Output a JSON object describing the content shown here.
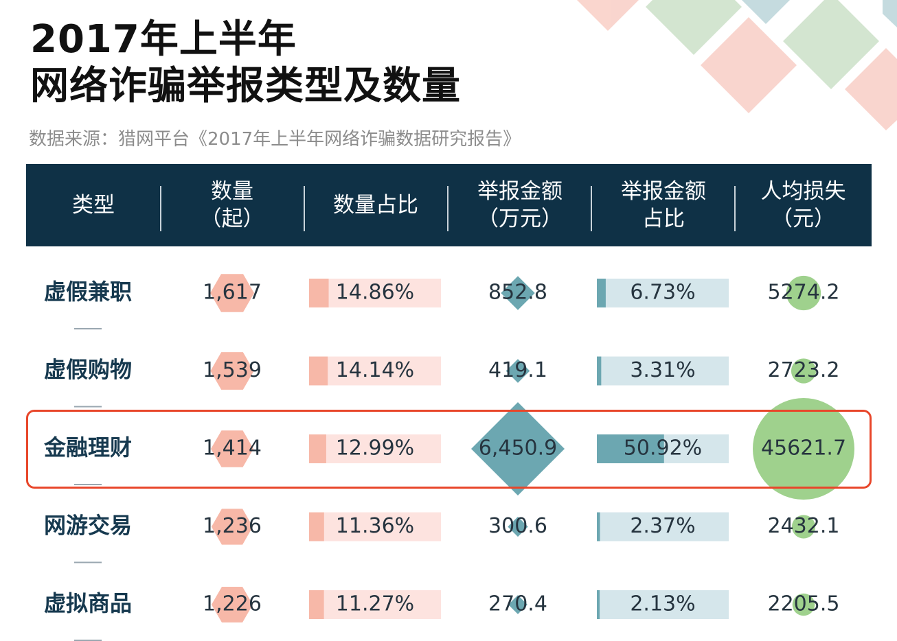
{
  "title_line1": "2017年上半年",
  "title_line2": "网络诈骗举报类型及数量",
  "source": "数据来源：猎网平台《2017年上半年网络诈骗数据研究报告》",
  "headers": [
    {
      "line1": "类型",
      "line2": ""
    },
    {
      "line1": "数量",
      "line2": "（起）"
    },
    {
      "line1": "数量占比",
      "line2": ""
    },
    {
      "line1": "举报金额",
      "line2": "（万元）"
    },
    {
      "line1": "举报金额",
      "line2": "占比"
    },
    {
      "line1": "人均损失",
      "line2": "（元）"
    }
  ],
  "colors": {
    "header_bg": "#0f3146",
    "count_marker": "#f7b8a8",
    "pct_bar_bg": "#fde3df",
    "pct_bar_fill": "#f7b8a8",
    "amount_marker": "#6ca7b1",
    "amount_bar_bg": "#d5e6eb",
    "amount_bar_fill": "#6ca7b1",
    "loss_marker": "#9fd18d",
    "highlight": "#e8462a"
  },
  "chart_data": {
    "type": "table",
    "columns": [
      "类型",
      "数量（起）",
      "数量占比",
      "举报金额（万元）",
      "举报金额占比",
      "人均损失（元）"
    ],
    "highlighted_row": "金融理财",
    "rows": [
      {
        "type": "虚假兼职",
        "count": 1617,
        "count_label": "1,617",
        "count_pct": 14.86,
        "count_pct_label": "14.86%",
        "amount": 852.8,
        "amount_label": "852.8",
        "amount_pct": 6.73,
        "amount_pct_label": "6.73%",
        "loss": 5274.2,
        "loss_label": "5274.2"
      },
      {
        "type": "虚假购物",
        "count": 1539,
        "count_label": "1,539",
        "count_pct": 14.14,
        "count_pct_label": "14.14%",
        "amount": 419.1,
        "amount_label": "419.1",
        "amount_pct": 3.31,
        "amount_pct_label": "3.31%",
        "loss": 2723.2,
        "loss_label": "2723.2"
      },
      {
        "type": "金融理财",
        "count": 1414,
        "count_label": "1,414",
        "count_pct": 12.99,
        "count_pct_label": "12.99%",
        "amount": 6450.9,
        "amount_label": "6,450.9",
        "amount_pct": 50.92,
        "amount_pct_label": "50.92%",
        "loss": 45621.7,
        "loss_label": "45621.7"
      },
      {
        "type": "网游交易",
        "count": 1236,
        "count_label": "1,236",
        "count_pct": 11.36,
        "count_pct_label": "11.36%",
        "amount": 300.6,
        "amount_label": "300.6",
        "amount_pct": 2.37,
        "amount_pct_label": "2.37%",
        "loss": 2432.1,
        "loss_label": "2432.1"
      },
      {
        "type": "虚拟商品",
        "count": 1226,
        "count_label": "1,226",
        "count_pct": 11.27,
        "count_pct_label": "11.27%",
        "amount": 270.4,
        "amount_label": "270.4",
        "amount_pct": 2.13,
        "amount_pct_label": "2.13%",
        "loss": 2205.5,
        "loss_label": "2205.5"
      }
    ]
  }
}
